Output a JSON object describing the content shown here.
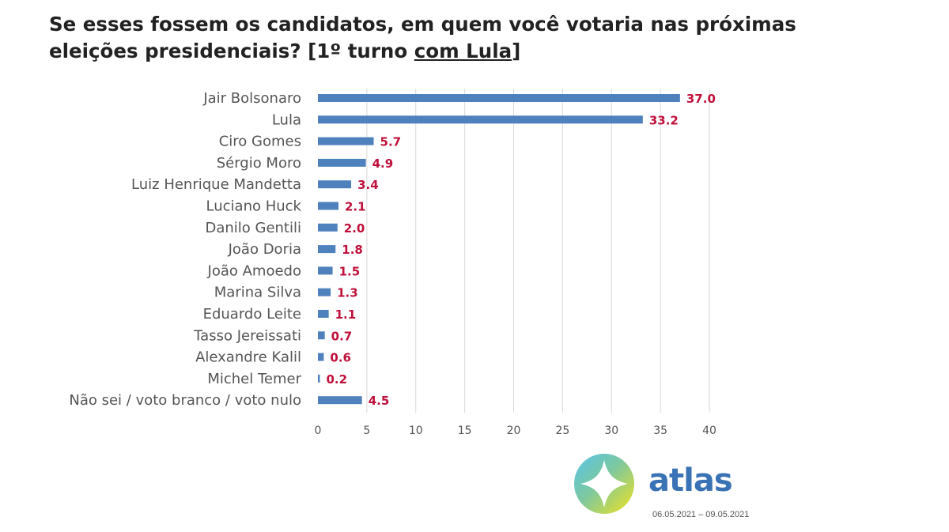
{
  "title": {
    "line1": "Se esses fossem os candidatos, em quem você votaria nas próximas",
    "line2_prefix": "eleições presidenciais? [1º turno ",
    "line2_underlined": "com Lula",
    "line2_suffix": "]"
  },
  "chart_data": {
    "type": "bar",
    "orientation": "horizontal",
    "categories": [
      "Jair Bolsonaro",
      "Lula",
      "Ciro Gomes",
      "Sérgio Moro",
      "Luiz Henrique Mandetta",
      "Luciano Huck",
      "Danilo Gentili",
      "João Doria",
      "João Amoedo",
      "Marina Silva",
      "Eduardo Leite",
      "Tasso Jereissati",
      "Alexandre Kalil",
      "Michel Temer",
      "Não sei / voto branco / voto nulo"
    ],
    "values": [
      37.0,
      33.2,
      5.7,
      4.9,
      3.4,
      2.1,
      2.0,
      1.8,
      1.5,
      1.3,
      1.1,
      0.7,
      0.6,
      0.2,
      4.5
    ],
    "value_labels": [
      "37.0",
      "33.2",
      "5.7",
      "4.9",
      "3.4",
      "2.1",
      "2.0",
      "1.8",
      "1.5",
      "1.3",
      "1.1",
      "0.7",
      "0.6",
      "0.2",
      "4.5"
    ],
    "xlim": [
      0,
      40
    ],
    "xticks": [
      "0",
      "5",
      "10",
      "15",
      "20",
      "25",
      "30",
      "35",
      "40"
    ],
    "xtick_values": [
      0,
      5,
      10,
      15,
      20,
      25,
      30,
      35,
      40
    ],
    "grid": true,
    "bar_color": "#4f81bd",
    "value_label_color": "#c0103a"
  },
  "branding": {
    "logo_text": "atlas",
    "date_range": "06.05.2021 – 09.05.2021",
    "logo_color": "#3a73b5"
  }
}
